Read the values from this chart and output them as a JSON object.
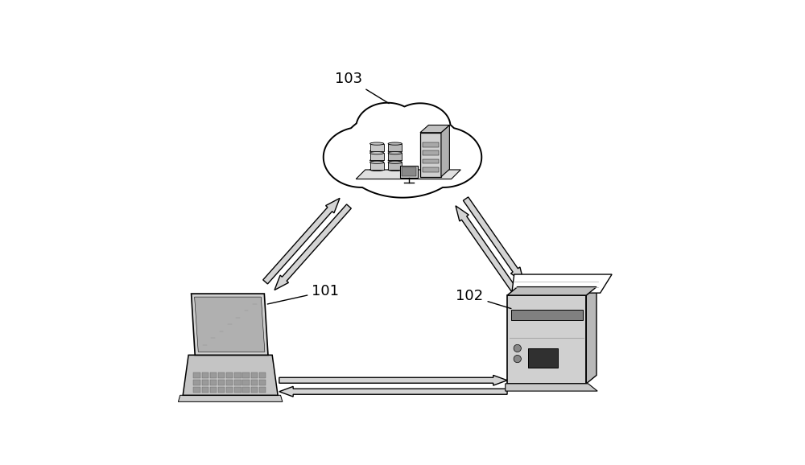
{
  "background_color": "#ffffff",
  "label_101": "101",
  "label_102": "102",
  "label_103": "103",
  "line_color": "#000000",
  "fill_light": "#d0d0d0",
  "fill_mid": "#b8b8b8",
  "fill_dark": "#909090",
  "arrow_fill": "#d4d4d4",
  "arrow_edge": "#000000",
  "label_fontsize": 13
}
